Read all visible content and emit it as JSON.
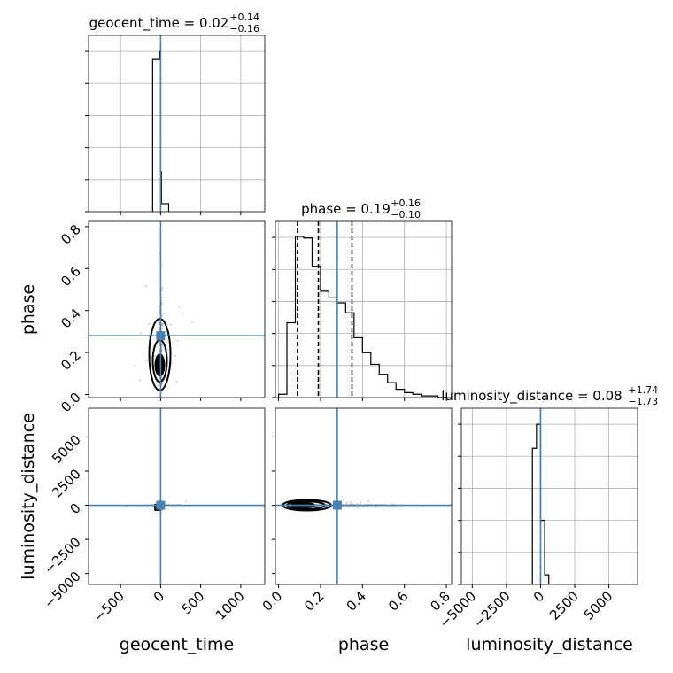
{
  "chart_data": {
    "type": "corner",
    "truth_color": "#4682b4",
    "hist_color": "#000000",
    "grid": true,
    "parameters": [
      "geocent_time",
      "phase",
      "luminosity_distance"
    ],
    "axis_labels": {
      "x": [
        "geocent_time",
        "phase",
        "luminosity_distance"
      ],
      "y": [
        "phase",
        "luminosity_distance"
      ]
    },
    "truths": {
      "geocent_time": 0,
      "phase": 0.28,
      "luminosity_distance": 0
    },
    "titles": [
      {
        "param": "geocent_time",
        "name": "geocent_time = 0.02",
        "sup": "+0.14",
        "sub": "−0.16"
      },
      {
        "param": "phase",
        "name": "phase = 0.19",
        "sup": "+0.16",
        "sub": "−0.10"
      },
      {
        "param": "luminosity_distance",
        "name": "luminosity_distance = 0.08",
        "sup": "+1.74",
        "sub": "−1.73"
      }
    ],
    "ranges": {
      "geocent_time": [
        -900,
        1300
      ],
      "phase": [
        -0.015,
        0.825
      ],
      "luminosity_distance": [
        -5800,
        7100
      ]
    },
    "ticks": {
      "geocent_time": {
        "values": [
          -500,
          0,
          500,
          1000
        ],
        "labels": [
          "−500",
          "0",
          "500",
          "1000"
        ]
      },
      "phase": {
        "values": [
          0.0,
          0.2,
          0.4,
          0.6,
          0.8
        ],
        "labels": [
          "0.0",
          "0.2",
          "0.4",
          "0.6",
          "0.8"
        ]
      },
      "luminosity_distance": {
        "values": [
          -5000,
          -2500,
          0,
          2500,
          5000
        ],
        "labels": [
          "−5000",
          "−2500",
          "0",
          "2500",
          "5000"
        ]
      }
    },
    "histograms": {
      "geocent_time": {
        "edges": [
          -100,
          -10,
          0,
          10,
          100
        ],
        "heights": [
          0.95,
          1.0,
          0.25,
          0.05
        ]
      },
      "phase": {
        "edges": [
          0.0,
          0.04,
          0.08,
          0.12,
          0.16,
          0.2,
          0.24,
          0.28,
          0.32,
          0.36,
          0.4,
          0.44,
          0.48,
          0.52,
          0.56,
          0.6,
          0.64,
          0.68,
          0.72,
          0.76,
          0.8
        ],
        "heights": [
          0.02,
          0.45,
          0.97,
          0.96,
          0.79,
          0.64,
          0.6,
          0.57,
          0.51,
          0.36,
          0.27,
          0.2,
          0.14,
          0.09,
          0.05,
          0.03,
          0.02,
          0.01,
          0.01,
          0.0
        ]
      },
      "luminosity_distance": {
        "edges": [
          -600,
          -300,
          0,
          300,
          600
        ],
        "heights": [
          0.85,
          1.0,
          0.4,
          0.06
        ]
      }
    },
    "quantiles": {
      "phase": [
        0.09,
        0.19,
        0.35
      ]
    },
    "hist_ylim": {
      "geocent_time": [
        0,
        1.1
      ],
      "phase": [
        0,
        1.06
      ],
      "luminosity_distance": [
        0,
        1.1
      ]
    }
  }
}
